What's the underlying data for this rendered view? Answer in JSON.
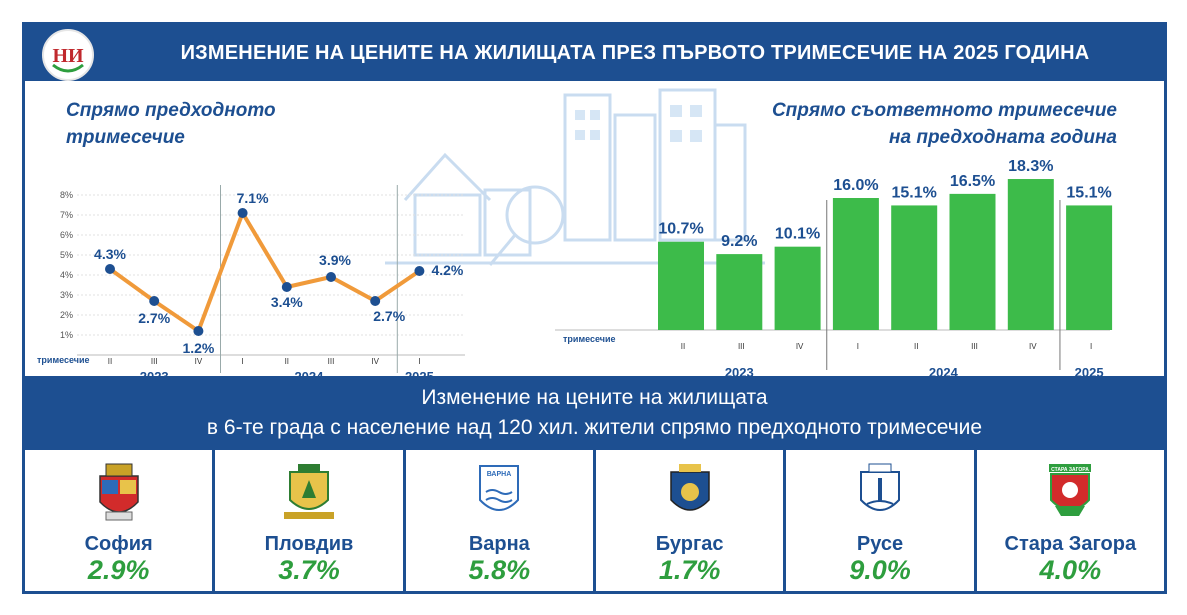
{
  "header": {
    "title": "ИЗМЕНЕНИЕ НА ЦЕНИТЕ НА ЖИЛИЩАТА ПРЕЗ ПЪРВОТО ТРИМЕСЕЧИЕ НА 2025 ГОДИНА",
    "logo_text": "НИ"
  },
  "left_section": {
    "title_line1": "Спрямо предходното",
    "title_line2": "тримесечие"
  },
  "right_section": {
    "title_line1": "Спрямо съответното тримесечие",
    "title_line2": "на предходната година"
  },
  "chart_data": [
    {
      "type": "line",
      "x_axis_label": "тримесечие",
      "quarters": [
        "II",
        "III",
        "IV",
        "I",
        "II",
        "III",
        "IV",
        "I"
      ],
      "years": [
        {
          "label": "2023",
          "quarters": 3
        },
        {
          "label": "2024",
          "quarters": 4
        },
        {
          "label": "2025",
          "quarters": 1
        }
      ],
      "series": [
        {
          "values": [
            4.3,
            2.7,
            1.2,
            7.1,
            3.4,
            3.9,
            2.7,
            4.2
          ],
          "labels": [
            "4.3%",
            "2.7%",
            "1.2%",
            "7.1%",
            "3.4%",
            "3.9%",
            "2.7%",
            "4.2%"
          ],
          "color": "#f09a3a",
          "marker_color": "#1d4f91"
        }
      ],
      "y_ticks": [
        "1%",
        "2%",
        "3%",
        "4%",
        "5%",
        "6%",
        "7%",
        "8%"
      ],
      "ylim": [
        0,
        8
      ],
      "grid": true
    },
    {
      "type": "bar",
      "x_axis_label": "тримесечие",
      "quarters": [
        "II",
        "III",
        "IV",
        "I",
        "II",
        "III",
        "IV",
        "I"
      ],
      "years": [
        {
          "label": "2023",
          "quarters": 3
        },
        {
          "label": "2024",
          "quarters": 4
        },
        {
          "label": "2025",
          "quarters": 1
        }
      ],
      "values": [
        10.7,
        9.2,
        10.1,
        16.0,
        15.1,
        16.5,
        18.3,
        15.1
      ],
      "labels": [
        "10.7%",
        "9.2%",
        "10.1%",
        "16.0%",
        "15.1%",
        "16.5%",
        "18.3%",
        "15.1%"
      ],
      "color": "#3dbb4a",
      "ylim": [
        0,
        20
      ]
    }
  ],
  "band": {
    "line1": "Изменение на цените на жилищата",
    "line2": "в 6-те града с население над 120 хил. жители спрямо предходното тримесечие"
  },
  "cities": [
    {
      "name": "София",
      "value": "2.9%",
      "crest_icon": "sofia-crest-icon"
    },
    {
      "name": "Пловдив",
      "value": "3.7%",
      "crest_icon": "plovdiv-crest-icon"
    },
    {
      "name": "Варна",
      "value": "5.8%",
      "crest_icon": "varna-crest-icon",
      "crest_text": "ВАРНА"
    },
    {
      "name": "Бургас",
      "value": "1.7%",
      "crest_icon": "burgas-crest-icon"
    },
    {
      "name": "Русе",
      "value": "9.0%",
      "crest_icon": "ruse-crest-icon"
    },
    {
      "name": "Стара Загора",
      "value": "4.0%",
      "crest_icon": "stara-zagora-crest-icon",
      "crest_text": "СТАРА ЗАГОРА"
    }
  ],
  "colors": {
    "brand_blue": "#1d4f91",
    "green": "#3dbb4a",
    "value_green": "#2e9e3e",
    "orange": "#f09a3a"
  }
}
